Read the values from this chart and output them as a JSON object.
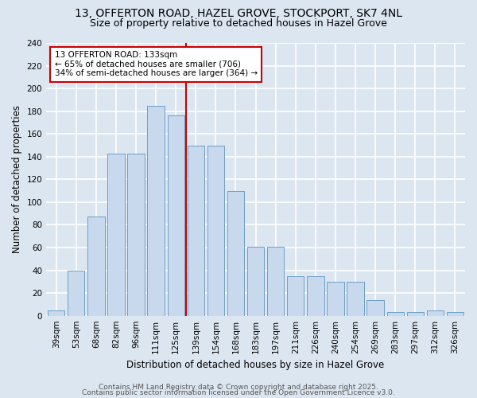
{
  "title1": "13, OFFERTON ROAD, HAZEL GROVE, STOCKPORT, SK7 4NL",
  "title2": "Size of property relative to detached houses in Hazel Grove",
  "xlabel": "Distribution of detached houses by size in Hazel Grove",
  "ylabel": "Number of detached properties",
  "bar_color": "#c9d9ed",
  "bar_edgecolor": "#6b9fc8",
  "background_color": "#dce6f1",
  "grid_color": "#ffffff",
  "vline_x": 7,
  "vline_color": "#cc0000",
  "annotation_text": "13 OFFERTON ROAD: 133sqm\n← 65% of detached houses are smaller (706)\n34% of semi-detached houses are larger (364) →",
  "annotation_box_color": "#ffffff",
  "annotation_box_edgecolor": "#cc0000",
  "bins": [
    39,
    53,
    68,
    82,
    96,
    111,
    125,
    139,
    154,
    168,
    183,
    197,
    211,
    226,
    240,
    254,
    269,
    283,
    297,
    312,
    326
  ],
  "values": [
    5,
    40,
    87,
    143,
    143,
    185,
    176,
    150,
    150,
    110,
    61,
    61,
    35,
    35,
    30,
    30,
    14,
    3,
    3,
    5,
    3
  ],
  "ylim": [
    0,
    240
  ],
  "yticks": [
    0,
    20,
    40,
    60,
    80,
    100,
    120,
    140,
    160,
    180,
    200,
    220,
    240
  ],
  "footer1": "Contains HM Land Registry data © Crown copyright and database right 2025.",
  "footer2": "Contains public sector information licensed under the Open Government Licence v3.0.",
  "title_fontsize": 10,
  "subtitle_fontsize": 9,
  "axis_label_fontsize": 8.5,
  "tick_fontsize": 7.5,
  "footer_fontsize": 6.5,
  "annotation_fontsize": 7.5
}
